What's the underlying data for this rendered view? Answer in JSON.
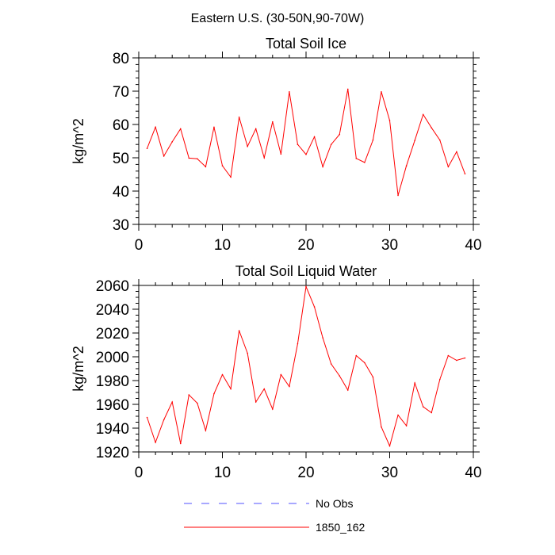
{
  "figure": {
    "suptitle": "Eastern U.S. (30-50N,90-70W)"
  },
  "colors": {
    "series": "#ff0000",
    "no_obs": "#5050ff",
    "axis": "#000000"
  },
  "legend": {
    "placement": "bottom-center",
    "entries": [
      {
        "label": "No Obs",
        "style": "dashed",
        "color": "#5050ff"
      },
      {
        "label": "1850_162",
        "style": "solid",
        "color": "#ff0000"
      }
    ]
  },
  "chart_data": [
    {
      "type": "line",
      "title": "Total Soil Ice",
      "xlabel": "",
      "ylabel": "kg/m^2",
      "xlim": [
        0,
        40
      ],
      "ylim": [
        30,
        80
      ],
      "xticks": [
        0,
        10,
        20,
        30,
        40
      ],
      "yticks": [
        30,
        40,
        50,
        60,
        70,
        80
      ],
      "grid": false,
      "series": [
        {
          "name": "1850_162",
          "x": [
            1,
            2,
            3,
            4,
            5,
            6,
            7,
            8,
            9,
            10,
            11,
            12,
            13,
            14,
            15,
            16,
            17,
            18,
            19,
            20,
            21,
            22,
            23,
            24,
            25,
            26,
            27,
            28,
            29,
            30,
            31,
            32,
            33,
            34,
            35,
            36,
            37,
            38,
            39
          ],
          "values": [
            52.8,
            59.2,
            50.5,
            54.8,
            58.7,
            49.9,
            49.7,
            47.3,
            59.2,
            47.6,
            44.2,
            62.2,
            53.4,
            58.7,
            50.0,
            60.8,
            51.1,
            69.8,
            54.0,
            51.0,
            56.3,
            47.3,
            54.0,
            57.0,
            70.6,
            49.8,
            48.6,
            55.3,
            69.8,
            61.2,
            38.7,
            47.6,
            55.2,
            63.0,
            59.0,
            55.3,
            47.3,
            51.8,
            45.2
          ]
        }
      ]
    },
    {
      "type": "line",
      "title": "Total Soil Liquid Water",
      "xlabel": "",
      "ylabel": "kg/m^2",
      "xlim": [
        0,
        40
      ],
      "ylim": [
        1920,
        2060
      ],
      "xticks": [
        0,
        10,
        20,
        30,
        40
      ],
      "yticks": [
        1920,
        1940,
        1960,
        1980,
        2000,
        2020,
        2040,
        2060
      ],
      "grid": false,
      "series": [
        {
          "name": "1850_162",
          "x": [
            1,
            2,
            3,
            4,
            5,
            6,
            7,
            8,
            9,
            10,
            11,
            12,
            13,
            14,
            15,
            16,
            17,
            18,
            19,
            20,
            21,
            22,
            23,
            24,
            25,
            26,
            27,
            28,
            29,
            30,
            31,
            32,
            33,
            34,
            35,
            36,
            37,
            38,
            39
          ],
          "values": [
            1949,
            1928,
            1947,
            1962,
            1927,
            1968,
            1961,
            1938,
            1969,
            1985,
            1973,
            2022,
            2003,
            1962,
            1973,
            1956,
            1985,
            1975,
            2011,
            2059,
            2042,
            2016,
            1994,
            1984,
            1972,
            2001,
            1995,
            1983,
            1941,
            1925,
            1951,
            1942,
            1978,
            1958,
            1953,
            1981,
            2001,
            1997,
            1999
          ]
        }
      ]
    }
  ]
}
